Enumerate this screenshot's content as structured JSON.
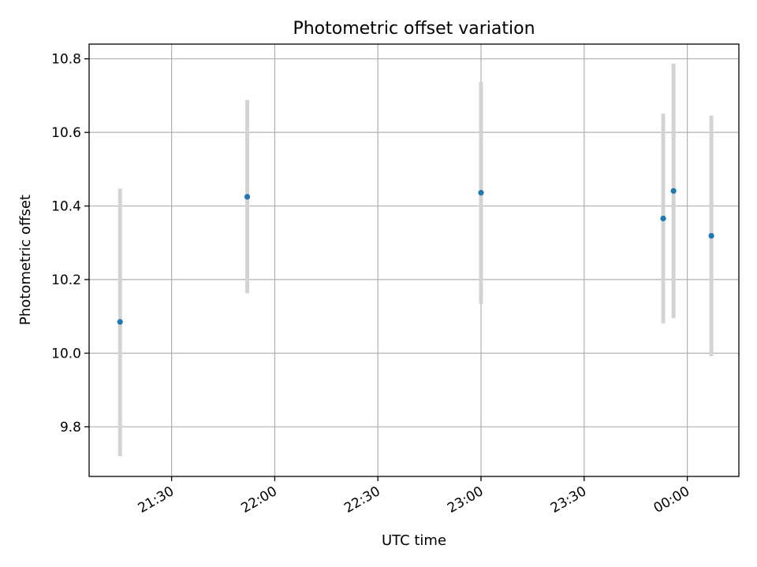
{
  "chart_data": {
    "type": "scatter",
    "title": "Photometric offset variation",
    "xlabel": "UTC time",
    "ylabel": "Photometric offset",
    "x_axis": {
      "kind": "time",
      "ticks": [
        "21:30",
        "22:00",
        "22:30",
        "23:00",
        "23:30",
        "00:00"
      ],
      "range": [
        "21:06",
        "00:15"
      ]
    },
    "y_axis": {
      "ticks": [
        "9.8",
        "10.0",
        "10.2",
        "10.4",
        "10.6",
        "10.8"
      ],
      "ylim": [
        9.665,
        10.84
      ]
    },
    "grid": true,
    "colors": {
      "points": "#1f77b4",
      "error_bars": "#d3d3d3"
    },
    "points": [
      {
        "time": "21:15",
        "y": 10.085,
        "err_low": 9.72,
        "err_high": 10.447
      },
      {
        "time": "21:52",
        "y": 10.425,
        "err_low": 10.163,
        "err_high": 10.688
      },
      {
        "time": "23:00",
        "y": 10.436,
        "err_low": 10.134,
        "err_high": 10.737
      },
      {
        "time": "23:53",
        "y": 10.366,
        "err_low": 10.081,
        "err_high": 10.651
      },
      {
        "time": "23:56",
        "y": 10.441,
        "err_low": 10.095,
        "err_high": 10.787
      },
      {
        "time": "00:07",
        "y": 10.319,
        "err_low": 9.992,
        "err_high": 10.646
      }
    ]
  }
}
